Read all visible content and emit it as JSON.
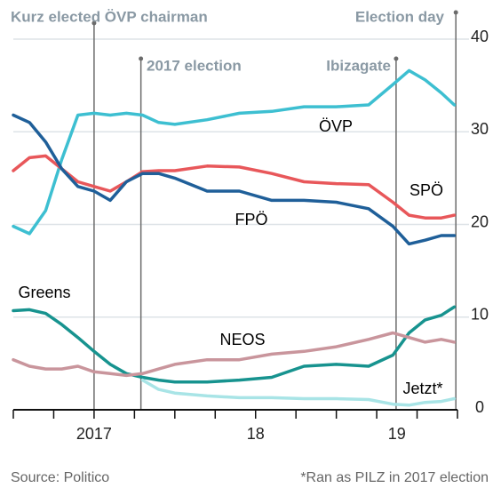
{
  "chart_data": {
    "type": "line",
    "source": "Source: Politico",
    "footnote": "*Ran as PILZ in 2017 election",
    "x": [
      2017.0,
      2017.1,
      2017.2,
      2017.3,
      2017.4,
      2017.5,
      2017.6,
      2017.7,
      2017.8,
      2017.9,
      2018.0,
      2018.2,
      2018.4,
      2018.6,
      2018.8,
      2019.0,
      2019.2,
      2019.35,
      2019.45,
      2019.55,
      2019.65,
      2019.73
    ],
    "series": [
      {
        "name": "ÖVP",
        "color": "#3dbfd1",
        "values": [
          19.8,
          19,
          21.5,
          27,
          31.8,
          32,
          31.8,
          32,
          31.8,
          31,
          30.8,
          31.3,
          32,
          32.2,
          32.7,
          32.7,
          32.9,
          35.1,
          36.6,
          35.6,
          34.2,
          32.9
        ]
      },
      {
        "name": "SPÖ",
        "color": "#e8575a",
        "values": [
          25.8,
          27.2,
          27.4,
          26,
          24.6,
          24.1,
          23.6,
          24.6,
          25.7,
          25.8,
          25.8,
          26.3,
          26.2,
          25.5,
          24.6,
          24.4,
          24.3,
          22.4,
          21,
          20.7,
          20.7,
          21
        ]
      },
      {
        "name": "FPÖ",
        "color": "#1f5f99",
        "values": [
          31.8,
          31,
          28.9,
          26,
          24.1,
          23.6,
          22.6,
          24.6,
          25.5,
          25.5,
          25,
          23.6,
          23.6,
          22.6,
          22.6,
          22.4,
          21.7,
          19.8,
          17.9,
          18.3,
          18.8,
          18.8
        ]
      },
      {
        "name": "Greens",
        "color": "#17938f",
        "values": [
          10.7,
          10.8,
          10.4,
          9.2,
          7.8,
          6.3,
          4.9,
          3.9,
          3.5,
          3.2,
          3,
          3,
          3.2,
          3.5,
          4.7,
          4.9,
          4.7,
          5.9,
          8.3,
          9.7,
          10.2,
          11.1
        ]
      },
      {
        "name": "NEOS",
        "color": "#c9959c",
        "values": [
          5.4,
          4.7,
          4.4,
          4.4,
          4.7,
          4.1,
          3.9,
          3.7,
          3.9,
          4.4,
          4.9,
          5.4,
          5.4,
          6,
          6.3,
          6.8,
          7.6,
          8.3,
          7.8,
          7.3,
          7.6,
          7.3
        ]
      },
      {
        "name": "Jetzt*",
        "color": "#a8e4e6",
        "values": [
          null,
          null,
          null,
          null,
          null,
          null,
          null,
          null,
          3.2,
          2.2,
          1.8,
          1.5,
          1.3,
          1.3,
          1.2,
          1.2,
          1.1,
          0.6,
          0.5,
          0.8,
          0.9,
          1.2
        ]
      }
    ],
    "annotations": [
      {
        "text": "Kurz elected ÖVP chairman",
        "x": 2017.5
      },
      {
        "text": "2017 election",
        "x": 2017.79
      },
      {
        "text": "Ibizagate",
        "x": 2019.37
      },
      {
        "text": "Election day",
        "x": 2019.74
      }
    ],
    "xlim": [
      2017.0,
      2019.75
    ],
    "xticks": [
      2017.0,
      2017.25,
      2017.5,
      2017.75,
      2018.0,
      2018.25,
      2018.5,
      2018.75,
      2019.0,
      2019.25,
      2019.5,
      2019.75
    ],
    "year_labels": [
      {
        "value": 2017.5,
        "label": "2017"
      },
      {
        "value": 2018.5,
        "label": "18"
      },
      {
        "value": 2019.375,
        "label": "19"
      }
    ],
    "ylim": [
      0,
      40
    ],
    "yticks": [
      0,
      10,
      20,
      30,
      40
    ],
    "grid": true
  }
}
